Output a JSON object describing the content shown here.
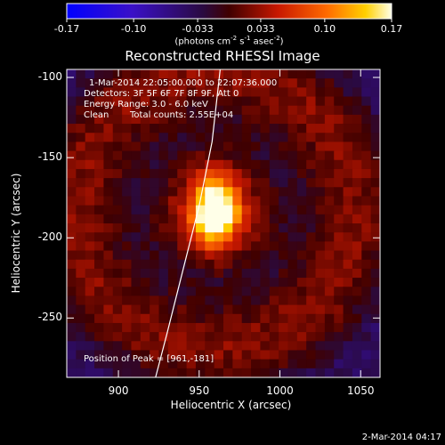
{
  "colorbar": {
    "ticks": [
      "-0.17",
      "-0.10",
      "-0.033",
      "0.033",
      "0.10",
      "0.17"
    ],
    "unit_prefix": "(photons cm",
    "unit_exp1": "-2",
    "unit_mid1": " s",
    "unit_exp2": "-1",
    "unit_mid2": " asec",
    "unit_exp3": "-2",
    "unit_suffix": ")"
  },
  "title": "Reconstructed RHESSI Image",
  "annotations": {
    "time_range": "1-Mar-2014 22:05:00.000 to 22:07:36.000",
    "detectors": "Detectors: 3F 5F 6F 7F 8F 9F, Att 0",
    "energy_range": "Energy Range: 3.0 - 6.0 keV",
    "clean": "Clean",
    "total_counts": "Total counts: 2.55E+04",
    "peak": "Position of Peak = [961,-181]"
  },
  "x_ticks": [
    "900",
    "950",
    "1000",
    "1050"
  ],
  "y_ticks": [
    "-100",
    "-150",
    "-200",
    "-250"
  ],
  "xlabel": "Heliocentric X (arcsec)",
  "ylabel": "Heliocentric Y (arcsec)",
  "timestamp": "2-Mar-2014 04:17",
  "chart_data": {
    "type": "heatmap",
    "title": "Reconstructed RHESSI Image",
    "xlabel": "Heliocentric X (arcsec)",
    "ylabel": "Heliocentric Y (arcsec)",
    "xlim": [
      868,
      1062
    ],
    "ylim": [
      -287,
      -95
    ],
    "x_ticks": [
      900,
      950,
      1000,
      1050
    ],
    "y_ticks": [
      -100,
      -150,
      -200,
      -250
    ],
    "colorbar_range": [
      -0.17,
      0.17
    ],
    "colorbar_ticks": [
      -0.17,
      -0.1,
      -0.033,
      0.033,
      0.1,
      0.17
    ],
    "colormap": "blue-purple-red-yellow-white",
    "peak_position": [
      961,
      -181
    ],
    "source": {
      "x": 960,
      "y": -183,
      "peak_value": 0.17
    },
    "limb_curve": [
      [
        963,
        -95
      ],
      [
        958,
        -140
      ],
      [
        950,
        -180
      ],
      [
        940,
        -220
      ],
      [
        930,
        -260
      ],
      [
        923,
        -287
      ]
    ],
    "pixel_grid": [
      34,
      34
    ]
  }
}
